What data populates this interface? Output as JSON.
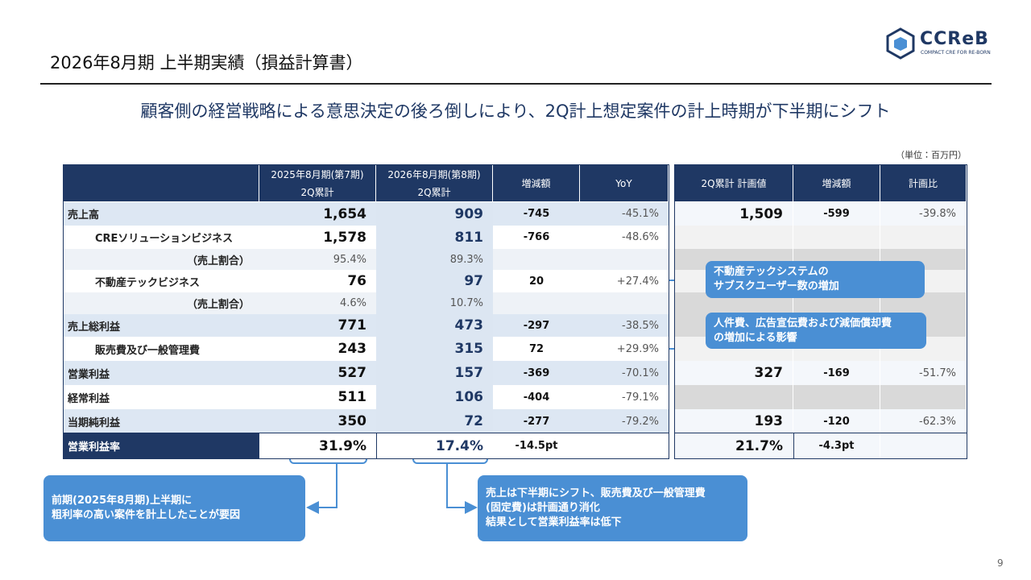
{
  "header": {
    "title": "2026年8月期 上半期実績（損益計算書）",
    "logo": "CCReB",
    "logo_sub": "COMPACT CRE FOR RE-BORN"
  },
  "subtitle": "顧客側の経営戦略による意思決定の後ろ倒しにより、2Q計上想定案件の計上時期が下半期にシフト",
  "unit": "（単位：百万円）",
  "table": {
    "headers": [
      [
        "2025年8月期(第7期)",
        "2Q累計"
      ],
      [
        "2026年8月期(第8期)",
        "2Q累計"
      ],
      [
        "増減額"
      ],
      [
        "YoY"
      ],
      [
        "2Q累計 計画値"
      ],
      [
        "増減額"
      ],
      [
        "計画比"
      ]
    ],
    "rows": [
      {
        "label": "売上高",
        "cells": [
          "1,654",
          "909",
          "-745",
          "-45.1%",
          "1,509",
          "-599",
          "-39.8%"
        ]
      },
      {
        "label": "CREソリューションビジネス",
        "cells": [
          "1,578",
          "811",
          "-766",
          "-48.6%",
          null,
          null,
          null
        ]
      },
      {
        "label": "（売上割合）",
        "cells": [
          "95.4%",
          "89.3%",
          null,
          null,
          null,
          null,
          null
        ]
      },
      {
        "label": "不動産テックビジネス",
        "cells": [
          "76",
          "97",
          "20",
          "+27.4%",
          null,
          null,
          null
        ]
      },
      {
        "label": "（売上割合）",
        "cells": [
          "4.6%",
          "10.7%",
          null,
          null,
          null,
          null,
          null
        ]
      },
      {
        "label": "売上総利益",
        "cells": [
          "771",
          "473",
          "-297",
          "-38.5%",
          null,
          null,
          null
        ]
      },
      {
        "label": "販売費及び一般管理費",
        "cells": [
          "243",
          "315",
          "72",
          "+29.9%",
          null,
          null,
          null
        ]
      },
      {
        "label": "営業利益",
        "cells": [
          "527",
          "157",
          "-369",
          "-70.1%",
          "327",
          "-169",
          "-51.7%"
        ]
      },
      {
        "label": "経常利益",
        "cells": [
          "511",
          "106",
          "-404",
          "-79.1%",
          null,
          null,
          null
        ]
      },
      {
        "label": "当期純利益",
        "cells": [
          "350",
          "72",
          "-277",
          "-79.2%",
          "193",
          "-120",
          "-62.3%"
        ]
      },
      {
        "label": "営業利益率",
        "cells": [
          "31.9%",
          "17.4%",
          "-14.5pt",
          null,
          "21.7%",
          "-4.3pt",
          null
        ]
      }
    ]
  },
  "callouts": [
    {
      "lines": [
        "不動産テックシステムの",
        "サブスクユーザー数の増加"
      ]
    },
    {
      "lines": [
        "人件費、広告宣伝費および減価償却費",
        "の増加による影響"
      ]
    },
    {
      "lines": [
        "前期(2025年8月期)上半期に",
        "粗利率の高い案件を計上したことが要因"
      ]
    },
    {
      "lines": [
        "売上は下半期にシフト、販売費及び一般管理費",
        "(固定費)は計画通り消化",
        "結果として営業利益率は低下"
      ]
    }
  ],
  "page_number": "9"
}
